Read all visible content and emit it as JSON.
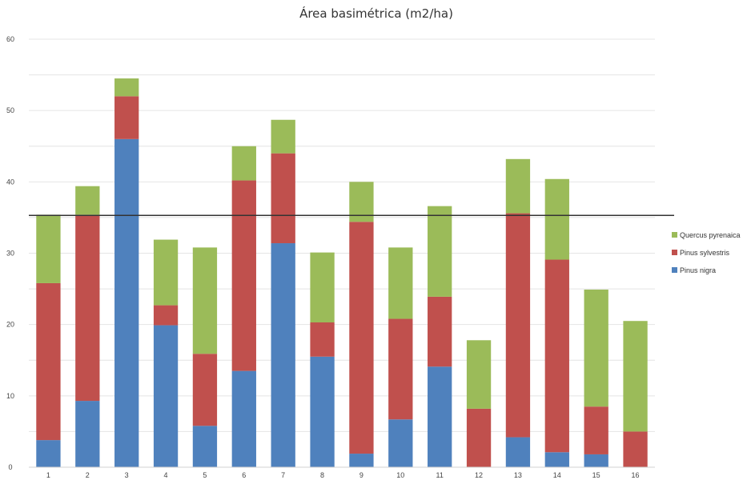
{
  "chart_data": {
    "type": "bar",
    "stacked": true,
    "title": "Área basimétrica (m2/ha)",
    "xlabel": "",
    "ylabel": "",
    "categories": [
      "1",
      "2",
      "3",
      "4",
      "5",
      "6",
      "7",
      "8",
      "9",
      "10",
      "11",
      "12",
      "13",
      "14",
      "15",
      "16"
    ],
    "series": [
      {
        "name": "Pinus nigra",
        "color": "#4f81bd",
        "values": [
          3.8,
          9.3,
          46.0,
          19.9,
          5.8,
          13.5,
          31.4,
          15.5,
          1.9,
          6.7,
          14.1,
          0,
          4.2,
          2.1,
          1.8,
          0
        ]
      },
      {
        "name": "Pinus sylvestris",
        "color": "#c0504d",
        "values": [
          22.0,
          26.1,
          6.0,
          2.8,
          10.1,
          26.7,
          12.6,
          4.8,
          32.5,
          14.1,
          9.8,
          8.2,
          31.4,
          27.0,
          6.7,
          5.0
        ]
      },
      {
        "name": "Quercus pyrenaica",
        "color": "#9bbb59",
        "values": [
          9.6,
          4.0,
          2.5,
          9.2,
          14.9,
          4.8,
          4.7,
          9.8,
          5.6,
          10.0,
          12.7,
          9.6,
          7.6,
          11.3,
          16.4,
          15.5
        ]
      }
    ],
    "legend_order": [
      "Quercus pyrenaica",
      "Pinus sylvestris",
      "Pinus nigra"
    ],
    "legend_position": "right",
    "ylim": [
      0,
      60
    ],
    "yticks": [
      "0",
      "10",
      "20",
      "30",
      "40",
      "50",
      "60"
    ],
    "grid": true,
    "reference_line": {
      "y": 35.3,
      "color": "#333333"
    }
  }
}
